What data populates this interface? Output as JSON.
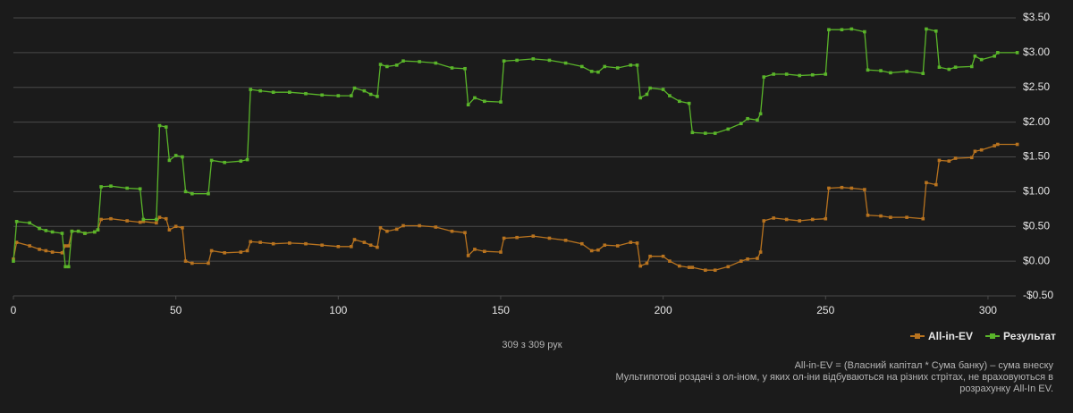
{
  "chart_data": {
    "type": "line",
    "subtitle": "309 з 309 рук",
    "notes": [
      "All-in-EV = (Власний капітал * Сума банку) – сума внеску",
      "Мультипотові роздачі з ол-іном, у яких ол-іни відбуваються на різних стрітах, не враховуються в",
      "розрахунку All-In EV."
    ],
    "x": [
      0,
      1,
      5,
      8,
      10,
      12,
      15,
      16,
      17,
      18,
      20,
      22,
      25,
      26,
      27,
      30,
      35,
      39,
      40,
      44,
      45,
      47,
      48,
      50,
      52,
      53,
      55,
      60,
      61,
      65,
      70,
      72,
      73,
      76,
      80,
      85,
      90,
      95,
      100,
      104,
      105,
      108,
      110,
      112,
      113,
      115,
      118,
      120,
      125,
      130,
      135,
      139,
      140,
      142,
      145,
      150,
      151,
      155,
      160,
      165,
      170,
      175,
      178,
      180,
      182,
      186,
      190,
      192,
      193,
      195,
      196,
      200,
      202,
      205,
      208,
      209,
      213,
      216,
      220,
      224,
      226,
      229,
      230,
      231,
      234,
      238,
      242,
      246,
      250,
      251,
      255,
      258,
      262,
      263,
      267,
      270,
      275,
      280,
      281,
      284,
      285,
      288,
      290,
      295,
      296,
      298,
      302,
      303,
      309
    ],
    "series": [
      {
        "name": "All-in-EV",
        "color": "#b8731f",
        "values": [
          0.03,
          0.27,
          0.22,
          0.17,
          0.15,
          0.13,
          0.12,
          0.22,
          0.22,
          0.43,
          0.43,
          0.4,
          0.42,
          0.45,
          0.6,
          0.61,
          0.58,
          0.56,
          0.57,
          0.55,
          0.63,
          0.61,
          0.45,
          0.5,
          0.48,
          0.0,
          -0.03,
          -0.03,
          0.15,
          0.12,
          0.13,
          0.15,
          0.28,
          0.27,
          0.25,
          0.26,
          0.25,
          0.23,
          0.21,
          0.21,
          0.31,
          0.27,
          0.23,
          0.2,
          0.48,
          0.43,
          0.46,
          0.51,
          0.51,
          0.49,
          0.43,
          0.41,
          0.08,
          0.17,
          0.14,
          0.13,
          0.33,
          0.34,
          0.36,
          0.33,
          0.3,
          0.25,
          0.15,
          0.16,
          0.23,
          0.22,
          0.27,
          0.26,
          -0.07,
          -0.03,
          0.07,
          0.07,
          0.0,
          -0.07,
          -0.09,
          -0.09,
          -0.13,
          -0.13,
          -0.08,
          0.0,
          0.03,
          0.04,
          0.13,
          0.58,
          0.62,
          0.6,
          0.58,
          0.6,
          0.61,
          1.05,
          1.06,
          1.05,
          1.03,
          0.66,
          0.65,
          0.63,
          0.63,
          0.61,
          1.13,
          1.1,
          1.45,
          1.44,
          1.48,
          1.49,
          1.58,
          1.6,
          1.66,
          1.68,
          1.68
        ]
      },
      {
        "name": "Результат",
        "color": "#5ab52a",
        "values": [
          0.0,
          0.57,
          0.55,
          0.47,
          0.44,
          0.42,
          0.4,
          -0.08,
          -0.08,
          0.43,
          0.43,
          0.4,
          0.42,
          0.45,
          1.07,
          1.08,
          1.05,
          1.04,
          0.6,
          0.6,
          1.95,
          1.93,
          1.45,
          1.52,
          1.5,
          1.0,
          0.97,
          0.97,
          1.45,
          1.42,
          1.44,
          1.46,
          2.47,
          2.45,
          2.43,
          2.43,
          2.41,
          2.39,
          2.38,
          2.38,
          2.49,
          2.45,
          2.4,
          2.37,
          2.83,
          2.8,
          2.82,
          2.88,
          2.87,
          2.85,
          2.78,
          2.77,
          2.25,
          2.35,
          2.3,
          2.29,
          2.88,
          2.89,
          2.91,
          2.89,
          2.85,
          2.8,
          2.73,
          2.72,
          2.8,
          2.78,
          2.82,
          2.82,
          2.35,
          2.4,
          2.49,
          2.47,
          2.38,
          2.3,
          2.27,
          1.85,
          1.84,
          1.84,
          1.9,
          1.98,
          2.05,
          2.03,
          2.12,
          2.65,
          2.69,
          2.69,
          2.67,
          2.68,
          2.69,
          3.33,
          3.33,
          3.34,
          3.3,
          2.75,
          2.74,
          2.71,
          2.73,
          2.7,
          3.34,
          3.31,
          2.79,
          2.76,
          2.79,
          2.8,
          2.95,
          2.9,
          2.95,
          3.0,
          3.0
        ]
      }
    ],
    "xlim": [
      0,
      308
    ],
    "xticks": [
      0,
      50,
      100,
      150,
      200,
      250,
      300
    ],
    "ylim": [
      -0.5,
      3.5
    ],
    "yticks": [
      {
        "value": -0.5,
        "label": "-$0.50"
      },
      {
        "value": 0,
        "label": "$0.00"
      },
      {
        "value": 0.5,
        "label": "$0.50"
      },
      {
        "value": 1,
        "label": "$1.00"
      },
      {
        "value": 1.5,
        "label": "$1.50"
      },
      {
        "value": 2,
        "label": "$2.00"
      },
      {
        "value": 2.5,
        "label": "$2.50"
      },
      {
        "value": 3,
        "label": "$3.00"
      },
      {
        "value": 3.5,
        "label": "$3.50"
      }
    ],
    "grid": true,
    "legend": "bottom-right"
  }
}
